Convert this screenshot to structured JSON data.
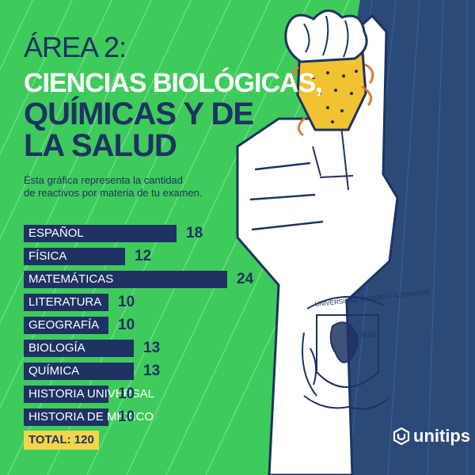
{
  "header": {
    "area_label": "ÁREA 2:",
    "title_line_1": "CIENCIAS BIOLÓGICAS,",
    "title_line_2": "QUÍMICAS Y DE",
    "title_line_3": "LA SALUD"
  },
  "subtitle": {
    "line_1": "Ésta gráfica representa la cantidad",
    "line_2": "de reactivos  por materia de tu examen."
  },
  "chart_data": {
    "type": "bar",
    "orientation": "horizontal",
    "categories": [
      "ESPAÑOL",
      "FÍSICA",
      "MATEMÁTICAS",
      "LITERATURA",
      "GEOGRAFÍA",
      "BIOLOGÍA",
      "QUÍMICA",
      "HISTORIA UNIVERSAL",
      "HISTORIA DE MÉXICO"
    ],
    "values": [
      18,
      12,
      24,
      10,
      10,
      13,
      13,
      10,
      10
    ],
    "bar_color": "#1e3263"
  },
  "total_label": "TOTAL: 120",
  "brand": {
    "name": "unitips",
    "icon": "unitips-logo-icon"
  },
  "emblem": {
    "ribbon_text": "UNIVERSIDAD NACIONAL AUTÓNOMA",
    "side_text": "POR MI RAZA HABLARÁ EL ESPÍRITU",
    "icon": "unam-seal-tattoo-icon"
  },
  "colors": {
    "background": "#3ecb5b",
    "navy": "#1e3263",
    "panel": "#2c4a78",
    "white": "#ffffff",
    "highlight": "#f2d54a",
    "strawberry": "#f1c232"
  }
}
